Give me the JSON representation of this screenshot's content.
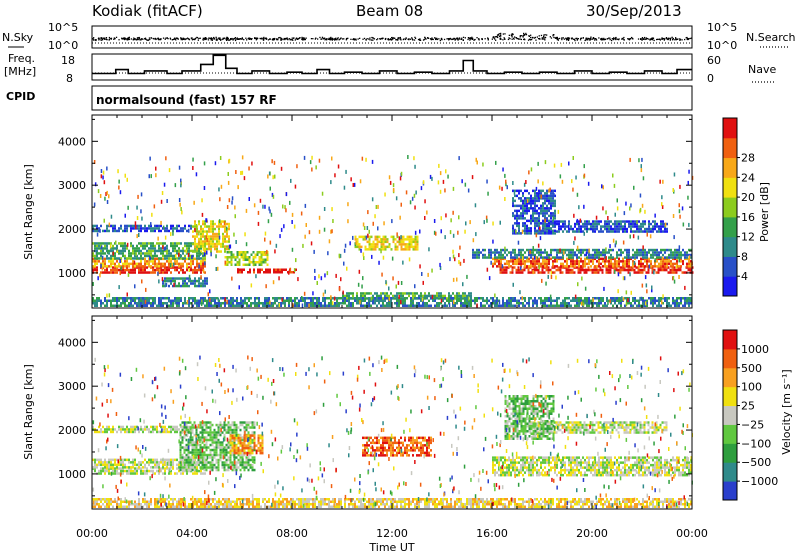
{
  "header": {
    "title": "Kodiak (fitACF)",
    "beam": "Beam 08",
    "date": "30/Sep/2013"
  },
  "noise_panel": {
    "left_label": "N.Sky",
    "right_label": "N.Search",
    "left_ticks": [
      "10^5",
      "10^0"
    ],
    "right_ticks": [
      "10^5",
      "10^0"
    ]
  },
  "freq_panel": {
    "left_label_line1": "Freq.",
    "left_label_line2": "[MHz]",
    "right_label": "Nave",
    "left_ticks": [
      "18",
      "8"
    ],
    "right_ticks": [
      "60",
      "0"
    ],
    "freq_steps_hours": [
      0.0,
      0.35,
      0.95,
      1.45,
      2.1,
      3.0,
      3.6,
      4.35,
      4.85,
      5.35,
      5.8,
      6.4,
      7.1,
      7.8,
      8.4,
      9.0,
      9.5,
      10.1,
      10.8,
      11.5,
      12.2,
      12.9,
      13.6,
      14.3,
      14.85,
      15.25,
      15.8,
      16.5,
      17.2,
      17.9,
      18.6,
      19.3,
      20.0,
      20.7,
      21.4,
      22.1,
      22.8,
      23.4,
      24.0
    ],
    "freq_values_mhz": [
      10.5,
      10.5,
      12.0,
      10.5,
      11.5,
      10.5,
      11.5,
      14.0,
      17.5,
      12.5,
      10.5,
      11.5,
      10.5,
      11.0,
      10.5,
      12.0,
      10.5,
      11.0,
      10.5,
      11.5,
      10.5,
      11.0,
      10.5,
      11.5,
      15.5,
      11.5,
      10.5,
      11.0,
      10.5,
      11.0,
      10.5,
      11.5,
      10.5,
      11.0,
      10.5,
      11.5,
      10.5,
      12.0,
      12.0
    ]
  },
  "cpid": {
    "label": "CPID",
    "text": "normalsound (fast) 157 RF"
  },
  "chart_data": [
    {
      "type": "heatmap",
      "title": "",
      "xlabel": "Time UT",
      "ylabel": "Slant Range [km]",
      "xlim_hours": [
        0,
        24
      ],
      "ylim_km": [
        200,
        4600
      ],
      "x_ticks": [
        "00:00",
        "04:00",
        "08:00",
        "12:00",
        "16:00",
        "20:00",
        "00:00"
      ],
      "y_ticks": [
        1000,
        2000,
        3000,
        4000
      ],
      "colorbar": {
        "label": "Power [dB]",
        "ticks": [
          "4",
          "8",
          "12",
          "16",
          "20",
          "24",
          "28"
        ],
        "colors": [
          "#1a1aee",
          "#2850c8",
          "#2e8a8a",
          "#33a04a",
          "#8ccc1e",
          "#f0e010",
          "#f8a818",
          "#f06010",
          "#e01010"
        ]
      },
      "echo_regions": [
        {
          "t0": 0.0,
          "t1": 4.5,
          "r0": 1000,
          "r1": 1150,
          "level": 8
        },
        {
          "t0": 0.0,
          "t1": 4.5,
          "r0": 1150,
          "r1": 1350,
          "level": 6
        },
        {
          "t0": 0.0,
          "t1": 4.5,
          "r0": 1350,
          "r1": 1700,
          "level": 3
        },
        {
          "t0": 0.0,
          "t1": 4.0,
          "r0": 1950,
          "r1": 2100,
          "level": 1
        },
        {
          "t0": 2.8,
          "t1": 4.6,
          "r0": 700,
          "r1": 900,
          "level": 2
        },
        {
          "t0": 4.0,
          "t1": 5.5,
          "r0": 1500,
          "r1": 2200,
          "level": 5
        },
        {
          "t0": 5.3,
          "t1": 7.0,
          "r0": 1200,
          "r1": 1500,
          "level": 4
        },
        {
          "t0": 5.8,
          "t1": 8.2,
          "r0": 1000,
          "r1": 1100,
          "level": 8
        },
        {
          "t0": 10.5,
          "t1": 13.0,
          "r0": 1550,
          "r1": 1850,
          "level": 5
        },
        {
          "t0": 10.0,
          "t1": 15.2,
          "r0": 400,
          "r1": 560,
          "level": 3
        },
        {
          "t0": 16.3,
          "t1": 24.0,
          "r0": 1000,
          "r1": 1150,
          "level": 8
        },
        {
          "t0": 16.0,
          "t1": 24.0,
          "r0": 1150,
          "r1": 1350,
          "level": 7
        },
        {
          "t0": 15.2,
          "t1": 24.0,
          "r0": 1350,
          "r1": 1550,
          "level": 2
        },
        {
          "t0": 18.0,
          "t1": 23.0,
          "r0": 1950,
          "r1": 2200,
          "level": 1
        },
        {
          "t0": 16.8,
          "t1": 18.5,
          "r0": 1900,
          "r1": 2900,
          "level": 1
        },
        {
          "t0": 0.0,
          "t1": 24.0,
          "r0": 250,
          "r1": 450,
          "level": 2
        }
      ]
    },
    {
      "type": "heatmap",
      "title": "",
      "xlabel": "Time UT",
      "ylabel": "Slant Range [km]",
      "xlim_hours": [
        0,
        24
      ],
      "ylim_km": [
        200,
        4600
      ],
      "x_ticks": [
        "00:00",
        "04:00",
        "08:00",
        "12:00",
        "16:00",
        "20:00",
        "00:00"
      ],
      "y_ticks": [
        1000,
        2000,
        3000,
        4000
      ],
      "colorbar": {
        "label": "Velocity [m s⁻¹]",
        "ticks": [
          "1000",
          "500",
          "100",
          "25",
          "−25",
          "−100",
          "−500",
          "−1000"
        ],
        "colors": [
          "#2a3fcc",
          "#2f8a8a",
          "#2e9e3e",
          "#60c840",
          "#c8c8c0",
          "#f0e010",
          "#f8a020",
          "#f06010",
          "#e01010"
        ]
      },
      "echo_regions": [
        {
          "t0": 0.0,
          "t1": 4.5,
          "r0": 1000,
          "r1": 1150,
          "level": 4
        },
        {
          "t0": 0.0,
          "t1": 4.5,
          "r0": 1150,
          "r1": 1350,
          "level": 4
        },
        {
          "t0": 0.0,
          "t1": 4.0,
          "r0": 1950,
          "r1": 2100,
          "level": 4
        },
        {
          "t0": 3.5,
          "t1": 6.5,
          "r0": 1100,
          "r1": 2200,
          "level": 3
        },
        {
          "t0": 5.5,
          "t1": 6.8,
          "r0": 1500,
          "r1": 1900,
          "level": 6
        },
        {
          "t0": 10.8,
          "t1": 13.6,
          "r0": 1450,
          "r1": 1850,
          "level": 7
        },
        {
          "t0": 16.0,
          "t1": 24.0,
          "r0": 1000,
          "r1": 1400,
          "level": 4
        },
        {
          "t0": 17.5,
          "t1": 23.0,
          "r0": 1950,
          "r1": 2200,
          "level": 4
        },
        {
          "t0": 16.5,
          "t1": 18.5,
          "r0": 1800,
          "r1": 2800,
          "level": 3
        },
        {
          "t0": 0.0,
          "t1": 24.0,
          "r0": 250,
          "r1": 450,
          "level": 5
        }
      ]
    }
  ]
}
